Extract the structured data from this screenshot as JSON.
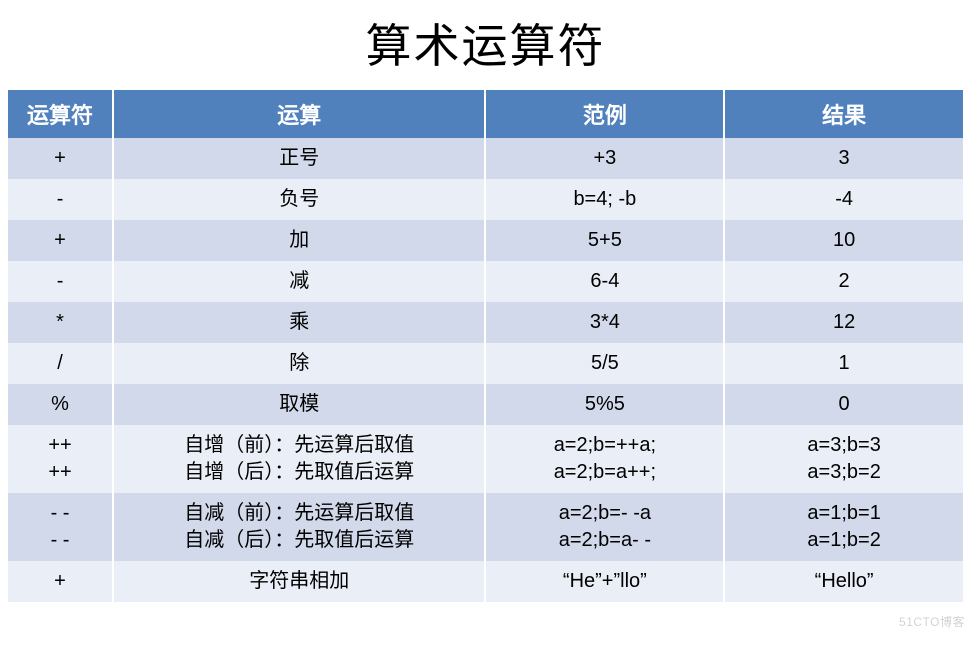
{
  "title": "算术运算符",
  "watermark": "51CTO博客",
  "table": {
    "header_bg": "#5181bd",
    "row_bg_odd": "#d1d9ea",
    "row_bg_even": "#eaeef6",
    "header_text_color": "#ffffff",
    "col_widths_pct": [
      11,
      39,
      25,
      25
    ],
    "columns": [
      "运算符",
      "运算",
      "范例",
      "结果"
    ],
    "rows": [
      {
        "cells": [
          "+",
          "正号",
          "+3",
          "3"
        ]
      },
      {
        "cells": [
          "-",
          "负号",
          "b=4; -b",
          "-4"
        ]
      },
      {
        "cells": [
          "+",
          "加",
          "5+5",
          "10"
        ]
      },
      {
        "cells": [
          "-",
          "减",
          "6-4",
          "2"
        ]
      },
      {
        "cells": [
          "*",
          "乘",
          "3*4",
          "12"
        ]
      },
      {
        "cells": [
          "/",
          "除",
          "5/5",
          "1"
        ]
      },
      {
        "cells": [
          "%",
          "取模",
          "5%5",
          "0"
        ]
      },
      {
        "cells": [
          "++\n++",
          "自增（前）：先运算后取值\n自增（后）：先取值后运算",
          "a=2;b=++a;\na=2;b=a++;",
          "a=3;b=3\na=3;b=2"
        ]
      },
      {
        "cells": [
          "- -\n- -",
          "自减（前）：先运算后取值\n自减（后）：先取值后运算",
          "a=2;b=- -a\na=2;b=a- -",
          "a=1;b=1\na=1;b=2"
        ]
      },
      {
        "cells": [
          "+",
          "字符串相加",
          "“He”+”llo”",
          "“Hello”"
        ]
      }
    ]
  }
}
